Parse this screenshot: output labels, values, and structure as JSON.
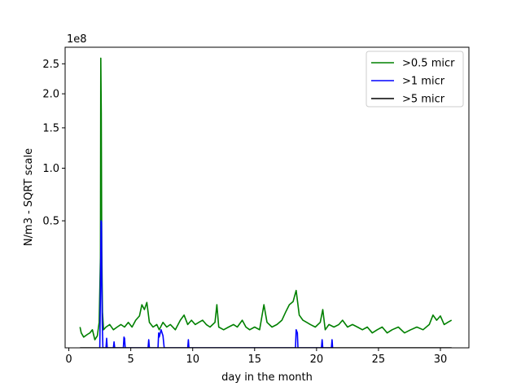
{
  "chart_data": {
    "type": "line",
    "xlabel": "day in the month",
    "ylabel": "N/m3 - SQRT scale",
    "y_scale": "sqrt",
    "y_offset_label": "1e8",
    "xlim": [
      -0.3,
      32.3
    ],
    "ylim": [
      0,
      2.8
    ],
    "x_ticks": [
      0,
      5,
      10,
      15,
      20,
      25,
      30
    ],
    "y_ticks": [
      0.5,
      1.0,
      1.5,
      2.0,
      2.5
    ],
    "y_tick_labels": [
      "0.5",
      "1.0",
      "1.5",
      "2.0",
      "2.5"
    ],
    "grid": false,
    "legend_position": "top-right",
    "series": [
      {
        "name": ">0.5 micr",
        "color": "#008000",
        "points": [
          [
            0.9,
            0.0134
          ],
          [
            1.0,
            0.0069
          ],
          [
            1.2,
            0.0036
          ],
          [
            1.5,
            0.0056
          ],
          [
            1.7,
            0.0069
          ],
          [
            1.9,
            0.0101
          ],
          [
            2.1,
            0.002
          ],
          [
            2.3,
            0.0045
          ],
          [
            2.45,
            0.0202
          ],
          [
            2.55,
            0.25
          ],
          [
            2.58,
            2.6
          ],
          [
            2.62,
            1.7
          ],
          [
            2.66,
            0.3
          ],
          [
            2.72,
            0.0392
          ],
          [
            2.8,
            0.0101
          ],
          [
            3.0,
            0.0134
          ],
          [
            3.3,
            0.0168
          ],
          [
            3.6,
            0.0101
          ],
          [
            3.9,
            0.0134
          ],
          [
            4.2,
            0.0168
          ],
          [
            4.5,
            0.0134
          ],
          [
            4.8,
            0.0202
          ],
          [
            5.1,
            0.0134
          ],
          [
            5.4,
            0.0236
          ],
          [
            5.7,
            0.0314
          ],
          [
            5.9,
            0.0576
          ],
          [
            6.1,
            0.0454
          ],
          [
            6.3,
            0.0639
          ],
          [
            6.5,
            0.0202
          ],
          [
            6.8,
            0.0134
          ],
          [
            7.1,
            0.0168
          ],
          [
            7.3,
            0.0101
          ],
          [
            7.6,
            0.0202
          ],
          [
            7.9,
            0.0134
          ],
          [
            8.2,
            0.0168
          ],
          [
            8.6,
            0.0101
          ],
          [
            9.0,
            0.0236
          ],
          [
            9.3,
            0.0333
          ],
          [
            9.6,
            0.0168
          ],
          [
            9.9,
            0.0236
          ],
          [
            10.2,
            0.0168
          ],
          [
            10.5,
            0.0202
          ],
          [
            10.8,
            0.0236
          ],
          [
            11.1,
            0.0168
          ],
          [
            11.4,
            0.0134
          ],
          [
            11.8,
            0.0202
          ],
          [
            11.95,
            0.0576
          ],
          [
            12.1,
            0.0134
          ],
          [
            12.5,
            0.0101
          ],
          [
            12.9,
            0.0134
          ],
          [
            13.3,
            0.0168
          ],
          [
            13.6,
            0.0134
          ],
          [
            14.0,
            0.0236
          ],
          [
            14.3,
            0.0134
          ],
          [
            14.6,
            0.0101
          ],
          [
            15.0,
            0.0134
          ],
          [
            15.4,
            0.0101
          ],
          [
            15.75,
            0.0576
          ],
          [
            16.0,
            0.0202
          ],
          [
            16.4,
            0.0134
          ],
          [
            16.8,
            0.0168
          ],
          [
            17.2,
            0.0236
          ],
          [
            17.5,
            0.0392
          ],
          [
            17.8,
            0.0576
          ],
          [
            18.1,
            0.066
          ],
          [
            18.35,
            0.1018
          ],
          [
            18.6,
            0.0333
          ],
          [
            18.9,
            0.0236
          ],
          [
            19.2,
            0.0202
          ],
          [
            19.5,
            0.0168
          ],
          [
            19.9,
            0.0134
          ],
          [
            20.3,
            0.0202
          ],
          [
            20.5,
            0.0454
          ],
          [
            20.7,
            0.0101
          ],
          [
            21.0,
            0.0168
          ],
          [
            21.4,
            0.0134
          ],
          [
            21.8,
            0.0168
          ],
          [
            22.1,
            0.0236
          ],
          [
            22.5,
            0.0134
          ],
          [
            22.9,
            0.0168
          ],
          [
            23.3,
            0.0134
          ],
          [
            23.7,
            0.0101
          ],
          [
            24.1,
            0.0134
          ],
          [
            24.5,
            0.0069
          ],
          [
            24.9,
            0.0101
          ],
          [
            25.3,
            0.0134
          ],
          [
            25.7,
            0.0069
          ],
          [
            26.1,
            0.0101
          ],
          [
            26.6,
            0.0134
          ],
          [
            27.1,
            0.0069
          ],
          [
            27.6,
            0.0101
          ],
          [
            28.1,
            0.0134
          ],
          [
            28.6,
            0.0101
          ],
          [
            29.1,
            0.0168
          ],
          [
            29.4,
            0.0333
          ],
          [
            29.7,
            0.0236
          ],
          [
            30.0,
            0.0314
          ],
          [
            30.3,
            0.0168
          ],
          [
            30.6,
            0.0202
          ],
          [
            30.9,
            0.0236
          ]
        ]
      },
      {
        "name": ">1 micr",
        "color": "#0000ff",
        "points": [
          [
            2.5,
            0.0
          ],
          [
            2.55,
            0.1
          ],
          [
            2.6,
            0.5
          ],
          [
            2.64,
            0.49
          ],
          [
            2.66,
            0.15
          ],
          [
            2.7,
            0.02
          ],
          [
            2.75,
            0.0
          ],
          [
            3.0,
            0.0
          ],
          [
            3.05,
            0.0028
          ],
          [
            3.1,
            0.0
          ],
          [
            3.6,
            0.0
          ],
          [
            3.65,
            0.0011
          ],
          [
            3.7,
            0.0
          ],
          [
            4.4,
            0.0
          ],
          [
            4.45,
            0.0036
          ],
          [
            4.5,
            0.0028
          ],
          [
            4.55,
            0.0
          ],
          [
            6.4,
            0.0
          ],
          [
            6.45,
            0.002
          ],
          [
            6.5,
            0.0
          ],
          [
            7.2,
            0.0
          ],
          [
            7.25,
            0.0069
          ],
          [
            7.3,
            0.0036
          ],
          [
            7.45,
            0.0101
          ],
          [
            7.6,
            0.0045
          ],
          [
            7.7,
            0.0
          ],
          [
            9.6,
            0.0
          ],
          [
            9.65,
            0.002
          ],
          [
            9.7,
            0.0
          ],
          [
            18.3,
            0.0
          ],
          [
            18.35,
            0.0101
          ],
          [
            18.45,
            0.0069
          ],
          [
            18.5,
            0.0
          ],
          [
            20.4,
            0.0
          ],
          [
            20.45,
            0.002
          ],
          [
            20.5,
            0.0
          ],
          [
            21.2,
            0.0
          ],
          [
            21.25,
            0.002
          ],
          [
            21.3,
            0.0
          ]
        ]
      },
      {
        "name": ">5 micr",
        "color": "#000000",
        "points": [
          [
            0.9,
            0.0
          ],
          [
            30.9,
            0.0
          ]
        ]
      }
    ]
  }
}
